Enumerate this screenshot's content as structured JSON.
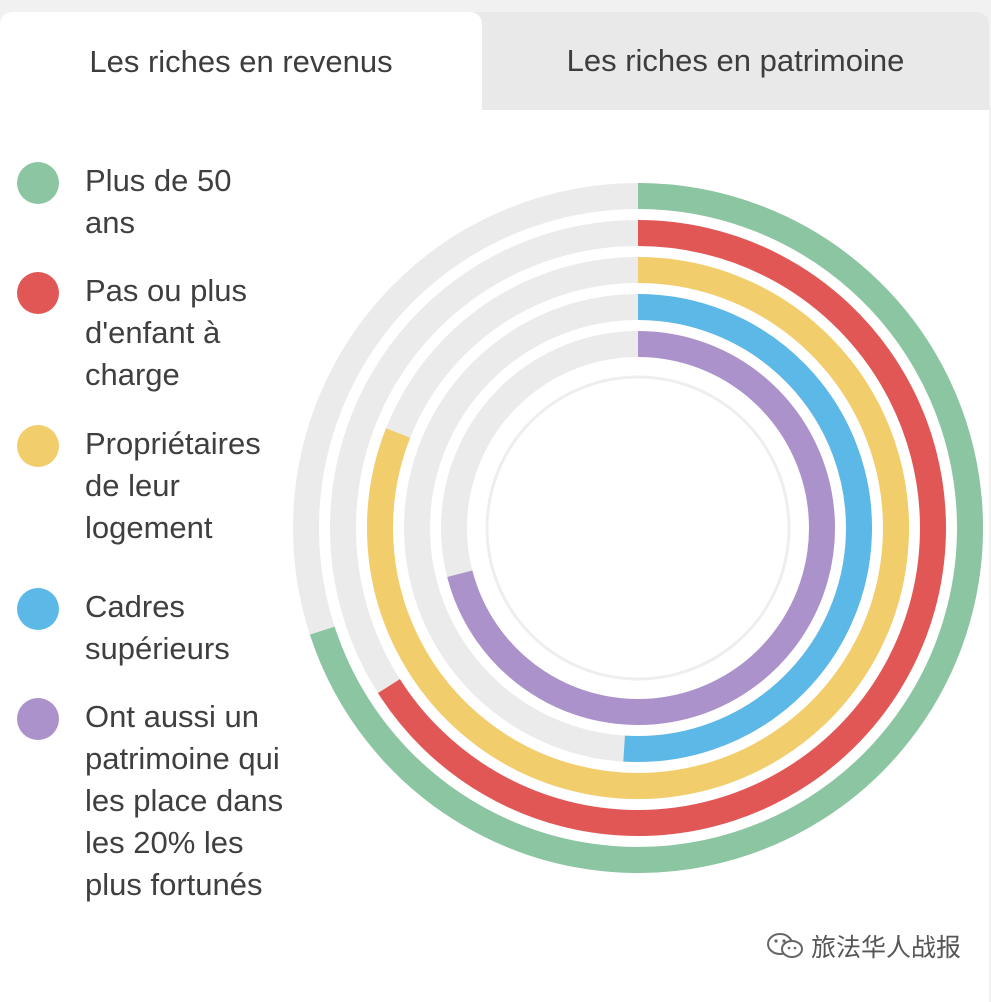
{
  "tabs": [
    {
      "label": "Les riches en revenus",
      "active": true
    },
    {
      "label": "Les riches en patrimoine",
      "active": false
    }
  ],
  "chart_data": {
    "type": "radial-bar",
    "series": [
      {
        "name": "Plus de 50 ans",
        "value": 70,
        "color": "#8cc5a2"
      },
      {
        "name": "Pas ou plus d'enfant à charge",
        "value": 66,
        "color": "#e15756"
      },
      {
        "name": "Propriétaires de leur logement",
        "value": 81,
        "color": "#f2cd6b"
      },
      {
        "name": "Cadres supérieurs",
        "value": 51,
        "color": "#5cb8e6"
      },
      {
        "name": "Ont aussi un patrimoine qui les place dans les 20% les plus fortunés",
        "value": 71,
        "color": "#ab92ca"
      }
    ],
    "max": 100,
    "track_color": "#ebebeb"
  },
  "watermark": {
    "text": "旅法华人战报",
    "icon": "wechat-icon"
  }
}
